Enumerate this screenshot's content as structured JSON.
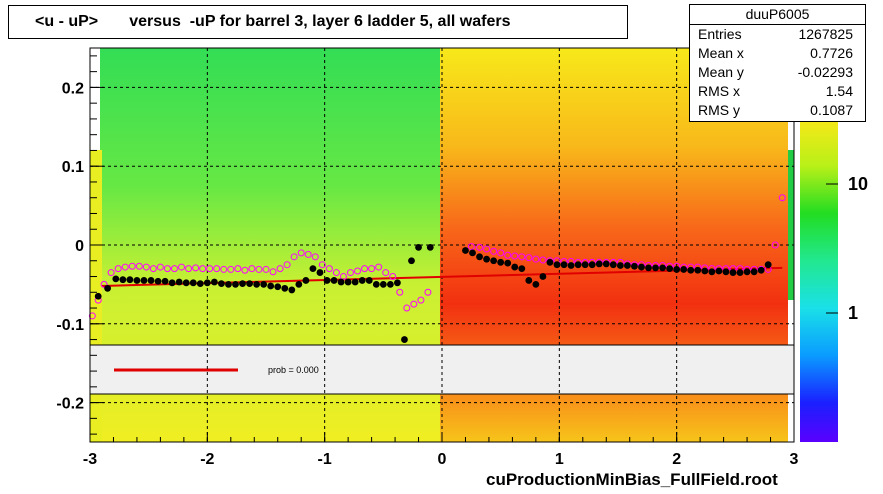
{
  "title": "<u - uP>       versus  -uP for barrel 3, layer 6 ladder 5, all wafers",
  "stats": {
    "name": "duuP6005",
    "rows": [
      {
        "k": "Entries",
        "v": "1267825"
      },
      {
        "k": "Mean x",
        "v": "0.7726"
      },
      {
        "k": "Mean y",
        "v": "-0.02293"
      },
      {
        "k": "RMS x",
        "v": "1.54"
      },
      {
        "k": "RMS y",
        "v": "0.1087"
      }
    ]
  },
  "legend": {
    "fit_label": "prob = 0.000"
  },
  "footer": "cuProductionMinBias_FullField.root",
  "colors": {
    "fit_line": "#e00000",
    "points_black": "#000000",
    "points_open": "#ff00ff"
  },
  "chart_data": {
    "type": "heatmap",
    "xlim": [
      -3,
      3
    ],
    "ylim": [
      -0.25,
      0.25
    ],
    "x_ticks": [
      "-3",
      "-2",
      "-1",
      "0",
      "1",
      "2",
      "3"
    ],
    "y_ticks": [
      "0.2",
      "0.1",
      "0",
      "-0.1",
      "-0.2"
    ],
    "z_ticks": [
      "10",
      "1"
    ],
    "z_scale": "log",
    "grid": true,
    "mean_points_black": {
      "x": [
        -2.93,
        -2.85,
        -2.78,
        -2.72,
        -2.66,
        -2.6,
        -2.54,
        -2.48,
        -2.42,
        -2.36,
        -2.3,
        -2.24,
        -2.18,
        -2.12,
        -2.06,
        -2.0,
        -1.94,
        -1.88,
        -1.82,
        -1.76,
        -1.7,
        -1.64,
        -1.58,
        -1.52,
        -1.46,
        -1.4,
        -1.34,
        -1.28,
        -1.22,
        -1.16,
        -1.1,
        -1.04,
        -0.98,
        -0.92,
        -0.86,
        -0.8,
        -0.74,
        -0.68,
        -0.62,
        -0.56,
        -0.5,
        -0.44,
        -0.38,
        -0.32,
        -0.26,
        -0.2,
        -0.1,
        0.2,
        0.26,
        0.32,
        0.38,
        0.44,
        0.5,
        0.56,
        0.62,
        0.68,
        0.74,
        0.8,
        0.86,
        0.92,
        0.98,
        1.04,
        1.1,
        1.16,
        1.22,
        1.28,
        1.34,
        1.4,
        1.46,
        1.52,
        1.58,
        1.64,
        1.7,
        1.76,
        1.82,
        1.88,
        1.94,
        2.0,
        2.06,
        2.12,
        2.18,
        2.24,
        2.3,
        2.36,
        2.42,
        2.48,
        2.54,
        2.6,
        2.66,
        2.72,
        2.78
      ],
      "y": [
        -0.065,
        -0.055,
        -0.043,
        -0.044,
        -0.044,
        -0.045,
        -0.045,
        -0.045,
        -0.046,
        -0.046,
        -0.048,
        -0.047,
        -0.048,
        -0.048,
        -0.049,
        -0.048,
        -0.047,
        -0.049,
        -0.05,
        -0.05,
        -0.049,
        -0.049,
        -0.05,
        -0.05,
        -0.052,
        -0.053,
        -0.055,
        -0.057,
        -0.05,
        -0.045,
        -0.03,
        -0.035,
        -0.045,
        -0.045,
        -0.047,
        -0.047,
        -0.047,
        -0.045,
        -0.045,
        -0.05,
        -0.05,
        -0.05,
        -0.048,
        -0.12,
        -0.02,
        -0.003,
        -0.003,
        -0.007,
        -0.01,
        -0.015,
        -0.018,
        -0.02,
        -0.022,
        -0.023,
        -0.028,
        -0.03,
        -0.045,
        -0.05,
        -0.04,
        -0.022,
        -0.025,
        -0.025,
        -0.026,
        -0.025,
        -0.025,
        -0.025,
        -0.024,
        -0.024,
        -0.025,
        -0.026,
        -0.026,
        -0.027,
        -0.028,
        -0.029,
        -0.029,
        -0.029,
        -0.03,
        -0.031,
        -0.031,
        -0.032,
        -0.032,
        -0.033,
        -0.034,
        -0.033,
        -0.034,
        -0.035,
        -0.035,
        -0.034,
        -0.034,
        -0.032,
        -0.025
      ]
    },
    "mean_points_open": {
      "x": [
        -2.98,
        -2.93,
        -2.88,
        -2.82,
        -2.76,
        -2.7,
        -2.64,
        -2.58,
        -2.52,
        -2.46,
        -2.4,
        -2.34,
        -2.28,
        -2.22,
        -2.16,
        -2.1,
        -2.04,
        -1.98,
        -1.92,
        -1.86,
        -1.8,
        -1.74,
        -1.68,
        -1.62,
        -1.56,
        -1.5,
        -1.44,
        -1.38,
        -1.32,
        -1.26,
        -1.2,
        -1.14,
        -1.08,
        -1.02,
        -0.96,
        -0.9,
        -0.84,
        -0.78,
        -0.72,
        -0.66,
        -0.6,
        -0.54,
        -0.48,
        -0.42,
        -0.36,
        -0.3,
        -0.24,
        -0.18,
        -0.12,
        0.25,
        0.32,
        0.38,
        0.44,
        0.5,
        0.56,
        0.62,
        0.68,
        0.74,
        0.8,
        0.86,
        0.92,
        0.98,
        1.04,
        1.1,
        1.16,
        1.22,
        1.28,
        1.34,
        1.4,
        1.46,
        1.52,
        1.58,
        1.64,
        1.7,
        1.76,
        1.82,
        1.88,
        1.94,
        2.0,
        2.06,
        2.12,
        2.18,
        2.24,
        2.3,
        2.36,
        2.42,
        2.48,
        2.54,
        2.6,
        2.66,
        2.72,
        2.78,
        2.84,
        2.9
      ],
      "y": [
        -0.09,
        -0.07,
        -0.05,
        -0.035,
        -0.03,
        -0.028,
        -0.027,
        -0.027,
        -0.028,
        -0.03,
        -0.028,
        -0.03,
        -0.03,
        -0.028,
        -0.03,
        -0.029,
        -0.03,
        -0.03,
        -0.03,
        -0.031,
        -0.031,
        -0.03,
        -0.032,
        -0.03,
        -0.031,
        -0.031,
        -0.034,
        -0.03,
        -0.025,
        -0.015,
        -0.01,
        -0.012,
        -0.015,
        -0.025,
        -0.03,
        -0.035,
        -0.04,
        -0.035,
        -0.033,
        -0.03,
        -0.03,
        -0.028,
        -0.035,
        -0.04,
        -0.06,
        -0.08,
        -0.075,
        -0.07,
        -0.06,
        -0.002,
        -0.003,
        -0.005,
        -0.008,
        -0.01,
        -0.013,
        -0.014,
        -0.015,
        -0.016,
        -0.018,
        -0.019,
        -0.02,
        -0.02,
        -0.021,
        -0.021,
        -0.022,
        -0.022,
        -0.022,
        -0.022,
        -0.022,
        -0.022,
        -0.022,
        -0.024,
        -0.025,
        -0.025,
        -0.026,
        -0.026,
        -0.026,
        -0.027,
        -0.027,
        -0.028,
        -0.028,
        -0.028,
        -0.029,
        -0.03,
        -0.03,
        -0.03,
        -0.03,
        -0.03,
        -0.031,
        -0.031,
        -0.031,
        -0.031,
        0.0,
        0.06
      ]
    },
    "fit_line": {
      "x": [
        -2.9,
        2.9
      ],
      "y": [
        -0.052,
        -0.029
      ]
    }
  }
}
